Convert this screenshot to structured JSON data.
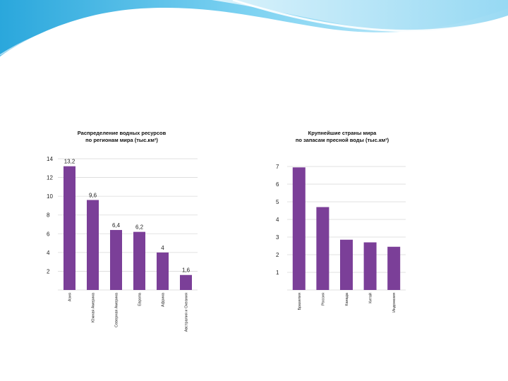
{
  "colors": {
    "bar": "#7b3f98",
    "grid": "#d9d9d9",
    "text": "#222222",
    "header_light": "#bfe6f7",
    "header_mid": "#5cc3ea",
    "header_dark": "#1f9fd6"
  },
  "chart_data": [
    {
      "type": "bar",
      "title_lines": [
        "Распределение водных ресурсов",
        "по регионам мира (тыс.км³)"
      ],
      "categories": [
        "Азия",
        "Южная Америка",
        "Северная Америка",
        "Европа",
        "Африка",
        "Австралия и Океания"
      ],
      "values": [
        13.2,
        9.6,
        6.4,
        6.2,
        4,
        1.6
      ],
      "value_labels": [
        "13,2",
        "9,6",
        "6,4",
        "6,2",
        "4",
        "1,6"
      ],
      "ylim": [
        0,
        14
      ],
      "yticks": [
        2,
        4,
        6,
        8,
        10,
        12,
        14
      ],
      "grid": true,
      "xlabel": "",
      "ylabel": ""
    },
    {
      "type": "bar",
      "title_lines": [
        "Крупнейшие страны мира",
        "по запасам пресной воды (тыс.км³)"
      ],
      "categories": [
        "Бразилия",
        "Россия",
        "Канада",
        "Китай",
        "Индонезия"
      ],
      "values": [
        6.95,
        4.7,
        2.85,
        2.7,
        2.45
      ],
      "value_labels": [],
      "ylim": [
        0,
        7
      ],
      "yticks": [
        1,
        2,
        3,
        4,
        5,
        6,
        7
      ],
      "grid": true,
      "xlabel": "",
      "ylabel": ""
    }
  ]
}
